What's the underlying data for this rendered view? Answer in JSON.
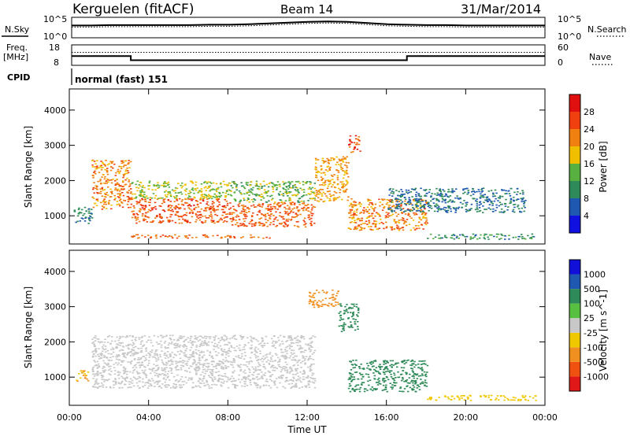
{
  "header": {
    "station": "Kerguelen (fitACF)",
    "beam": "Beam 14",
    "date": "31/Mar/2014"
  },
  "nsky": {
    "label": "N.Sky",
    "tick_top": "10^5",
    "tick_bottom": "10^0",
    "right_label": "N.Search",
    "right_tick_top": "10^5",
    "right_tick_bottom": "10^0"
  },
  "freq": {
    "label_line1": "Freq.",
    "label_line2": "[MHz]",
    "tick_top": "18",
    "tick_bottom": "8",
    "right_label": "Nave",
    "right_tick_top": "60",
    "right_tick_bottom": "0"
  },
  "cpid": {
    "label": "CPID",
    "text": "normal (fast) 151"
  },
  "colors": {
    "power": [
      "#1010e0",
      "#1f58b0",
      "#2e8a58",
      "#58b040",
      "#f0c000",
      "#f08010",
      "#f04010",
      "#e01010"
    ],
    "velocity": [
      "#e01818",
      "#f05010",
      "#f09020",
      "#f0c800",
      "#c8c8c8",
      "#58c040",
      "#2e8a58",
      "#1f58b0",
      "#1010d8"
    ],
    "ground": "#c6c6c4",
    "bg": "#ffffff"
  },
  "chart_data": [
    {
      "type": "line",
      "panel": "N.Sky / N.Search",
      "x_unit": "hours UT",
      "series": [
        {
          "name": "N.Sky",
          "x": [
            0,
            1,
            2,
            3,
            4,
            5,
            6,
            7,
            8,
            9,
            10,
            11,
            12,
            13,
            14,
            15,
            16,
            17,
            18,
            19,
            20,
            21,
            22,
            23,
            24
          ],
          "values": [
            3.0,
            3.0,
            3.1,
            3.1,
            3.1,
            3.1,
            3.1,
            3.2,
            3.2,
            3.3,
            3.5,
            3.7,
            3.9,
            4.0,
            3.9,
            3.6,
            3.3,
            3.2,
            3.1,
            3.1,
            3.0,
            3.0,
            3.0,
            3.0,
            3.0
          ]
        }
      ],
      "ylim": [
        0,
        5
      ]
    },
    {
      "type": "line",
      "panel": "Freq / Nave",
      "x_unit": "hours UT",
      "series": [
        {
          "name": "Freq.",
          "x": [
            0,
            3.0,
            3.0,
            17.0,
            17.0,
            24
          ],
          "values": [
            12.5,
            12.5,
            10.5,
            10.5,
            12.5,
            12.5
          ]
        },
        {
          "name": "Nave",
          "x": [
            0,
            24
          ],
          "values": [
            38,
            38
          ]
        }
      ],
      "ylim_freq": [
        8,
        18
      ],
      "ylim_nave": [
        0,
        60
      ]
    },
    {
      "type": "heatmap",
      "panel": "Power",
      "title": "",
      "xlabel": "",
      "ylabel": "Slant Range [km]",
      "x_range_hours": [
        0,
        24
      ],
      "ylim": [
        200,
        4600
      ],
      "x_ticks": [
        "00:00",
        "04:00",
        "08:00",
        "12:00",
        "16:00",
        "20:00",
        "00:00"
      ],
      "y_ticks": [
        1000,
        2000,
        3000,
        4000
      ],
      "colorbar": {
        "label": "Power [dB]",
        "ticks": [
          4,
          8,
          12,
          16,
          20,
          24,
          28
        ],
        "range": [
          0,
          32
        ]
      },
      "regions": [
        {
          "t0": 0.1,
          "t1": 1.0,
          "r0": 800,
          "r1": 1300,
          "value": 9
        },
        {
          "t0": 1.0,
          "t1": 3.0,
          "r0": 1200,
          "r1": 2600,
          "value": 22
        },
        {
          "t0": 3.0,
          "t1": 8.0,
          "r0": 800,
          "r1": 1500,
          "value": 25
        },
        {
          "t0": 3.0,
          "t1": 8.0,
          "r0": 1500,
          "r1": 2000,
          "value": 16
        },
        {
          "t0": 8.0,
          "t1": 12.3,
          "r0": 700,
          "r1": 1400,
          "value": 24
        },
        {
          "t0": 8.0,
          "t1": 12.3,
          "r0": 1400,
          "r1": 2000,
          "value": 14
        },
        {
          "t0": 3.0,
          "t1": 10.0,
          "r0": 380,
          "r1": 480,
          "value": 24
        },
        {
          "t0": 12.3,
          "t1": 14.0,
          "r0": 1400,
          "r1": 2700,
          "value": 20
        },
        {
          "t0": 14.0,
          "t1": 14.6,
          "r0": 2800,
          "r1": 3300,
          "value": 26
        },
        {
          "t0": 14.0,
          "t1": 18.0,
          "r0": 600,
          "r1": 1500,
          "value": 22
        },
        {
          "t0": 16.0,
          "t1": 23.0,
          "r0": 1100,
          "r1": 1800,
          "value": 8
        },
        {
          "t0": 18.0,
          "t1": 23.5,
          "r0": 350,
          "r1": 500,
          "value": 10
        }
      ]
    },
    {
      "type": "heatmap",
      "panel": "Velocity",
      "title": "",
      "xlabel": "Time UT",
      "ylabel": "Slant Range [km]",
      "x_range_hours": [
        0,
        24
      ],
      "ylim": [
        200,
        4600
      ],
      "x_ticks": [
        "00:00",
        "04:00",
        "08:00",
        "12:00",
        "16:00",
        "20:00",
        "00:00"
      ],
      "y_ticks": [
        1000,
        2000,
        3000,
        4000
      ],
      "colorbar": {
        "label": "Velocity [m s^-1]",
        "ticks": [
          "1000",
          "500",
          "100",
          "25",
          "-25",
          "-100",
          "-500",
          "-1000"
        ]
      },
      "regions": [
        {
          "t0": 1.0,
          "t1": 12.3,
          "r0": 700,
          "r1": 2200,
          "value": 0
        },
        {
          "t0": 14.0,
          "t1": 18.0,
          "r0": 600,
          "r1": 1500,
          "value": 150
        },
        {
          "t0": 13.5,
          "t1": 14.5,
          "r0": 2300,
          "r1": 3100,
          "value": 150
        },
        {
          "t0": 0.2,
          "t1": 0.8,
          "r0": 900,
          "r1": 1200,
          "value": -100
        },
        {
          "t0": 18.0,
          "t1": 23.5,
          "r0": 350,
          "r1": 500,
          "value": -80
        },
        {
          "t0": 12.0,
          "t1": 13.5,
          "r0": 3000,
          "r1": 3500,
          "value": -200
        }
      ]
    }
  ]
}
